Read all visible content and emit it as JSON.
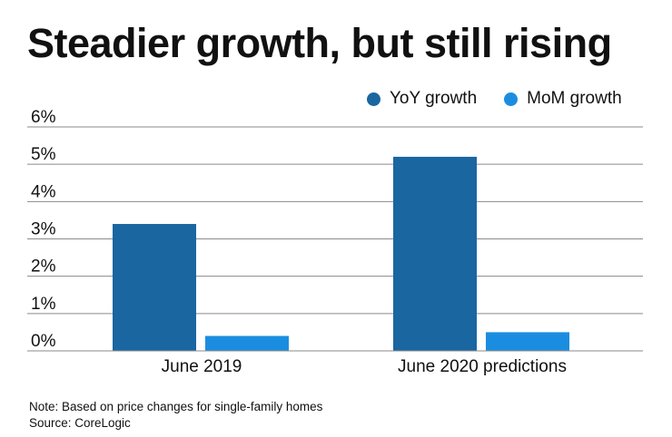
{
  "title": "Steadier growth, but still rising",
  "colors": {
    "yoy": "#1a66a1",
    "mom": "#1b8de0",
    "grid": "#8a8a8a"
  },
  "chart_data": {
    "type": "bar",
    "categories": [
      "June 2019",
      "June 2020 predictions"
    ],
    "series": [
      {
        "name": "YoY growth",
        "values": [
          3.4,
          5.2
        ]
      },
      {
        "name": "MoM growth",
        "values": [
          0.4,
          0.5
        ]
      }
    ],
    "yticks": [
      "0%",
      "1%",
      "2%",
      "3%",
      "4%",
      "5%",
      "6%"
    ],
    "ylim": [
      0,
      6
    ],
    "legend": "top-right",
    "grid": true
  },
  "notes": {
    "note": "Note: Based on price changes for single-family homes",
    "source": "Source: CoreLogic"
  }
}
